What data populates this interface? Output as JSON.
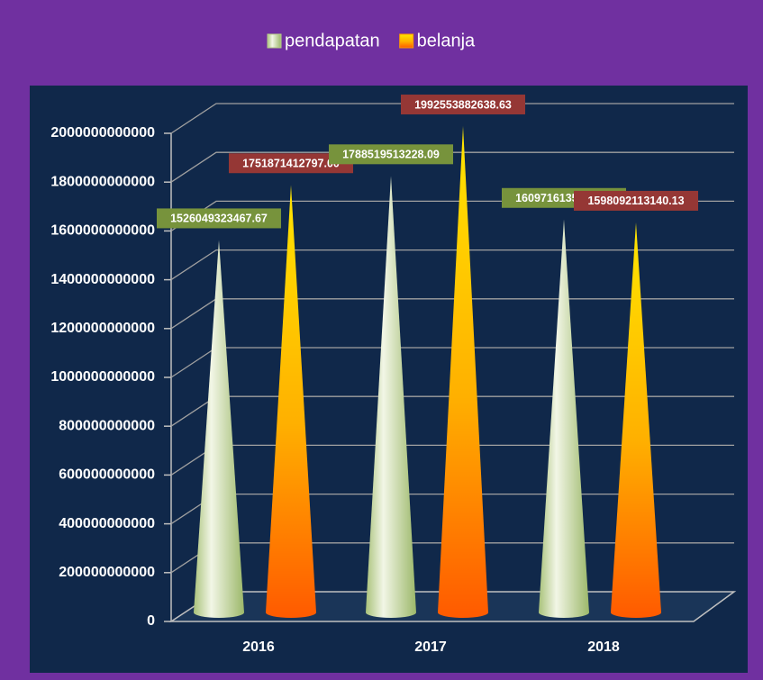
{
  "chart_data": {
    "type": "cone-bar",
    "categories": [
      "2016",
      "2017",
      "2018"
    ],
    "series": [
      {
        "name": "pendapatan",
        "color": "#b9cf8a",
        "label_color": "#77933c",
        "values": [
          1526049323467.67,
          1788519513228.09,
          1609716135931.38
        ],
        "value_labels": [
          "1526049323467.67",
          "1788519513228.09",
          "1609716135931.38"
        ]
      },
      {
        "name": "belanja",
        "color": "#ff9900",
        "label_color": "#953735",
        "values": [
          1751871412797.0,
          1992553882638.63,
          1598092113140.13
        ],
        "value_labels": [
          "1751871412797.00",
          "1992553882638.63",
          "1598092113140.13"
        ]
      }
    ],
    "ylim": [
      0,
      2000000000000
    ],
    "yticks": [
      0,
      200000000000,
      400000000000,
      600000000000,
      800000000000,
      1000000000000,
      1200000000000,
      1400000000000,
      1600000000000,
      1800000000000,
      2000000000000
    ],
    "grid": true,
    "legend": "top"
  }
}
